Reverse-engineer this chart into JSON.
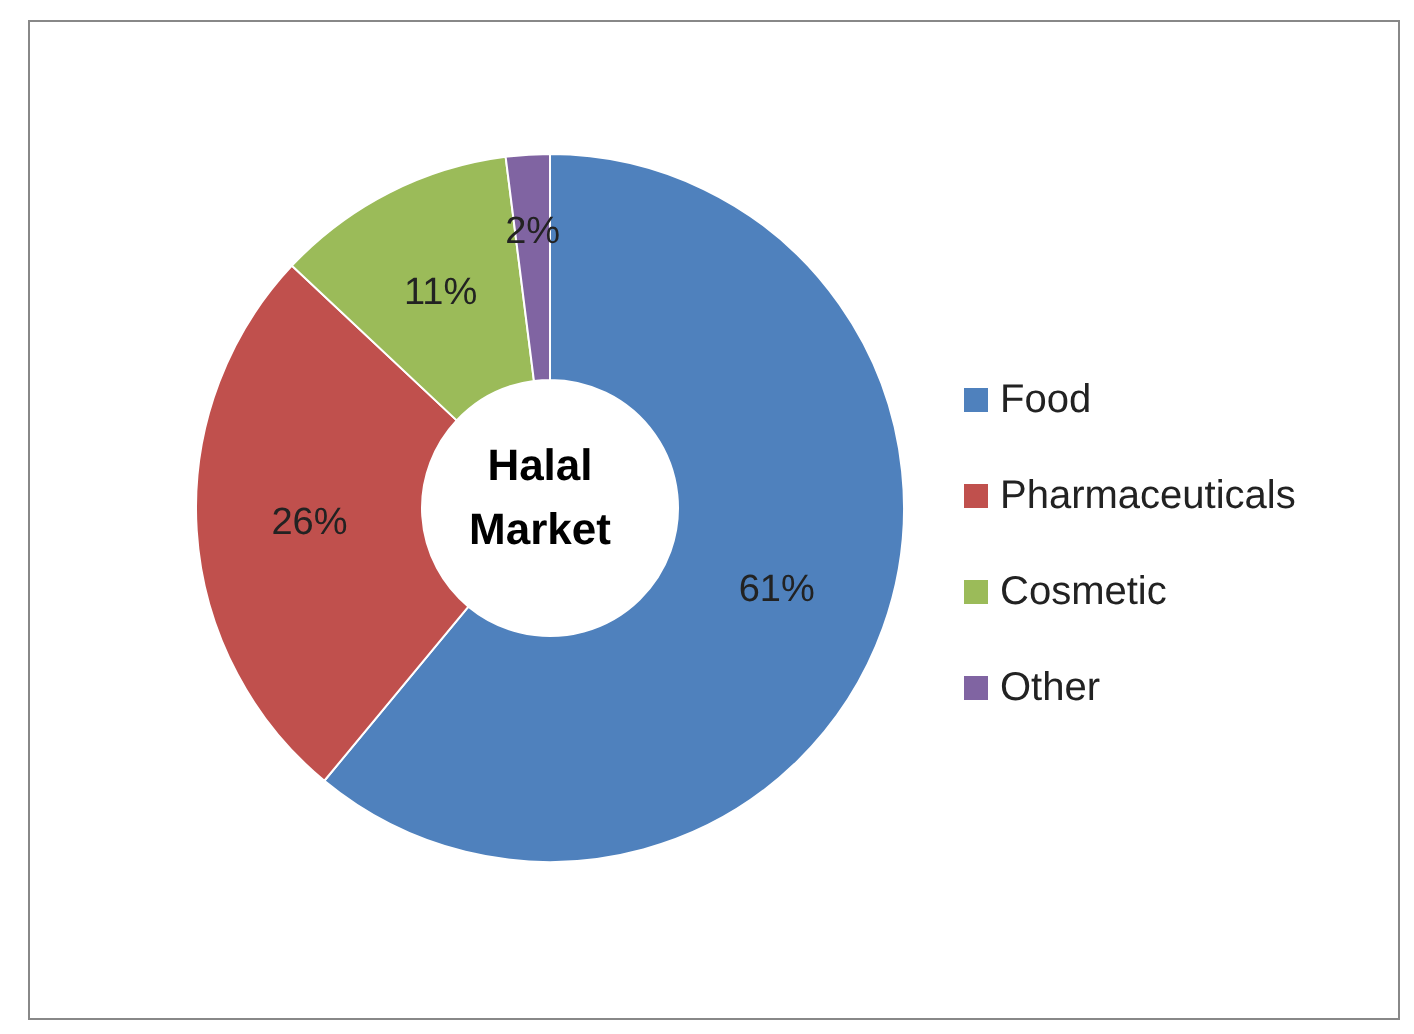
{
  "chart_data": {
    "type": "donut",
    "title": "Halal Market",
    "categories": [
      "Food",
      "Pharmaceuticals",
      "Cosmetic",
      "Other"
    ],
    "values": [
      61,
      26,
      11,
      2
    ],
    "colors": [
      "#4f81bd",
      "#c0504d",
      "#9bbb59",
      "#8064a2"
    ],
    "value_labels": [
      "61%",
      "26%",
      "11%",
      "2%"
    ],
    "legend": "right"
  }
}
